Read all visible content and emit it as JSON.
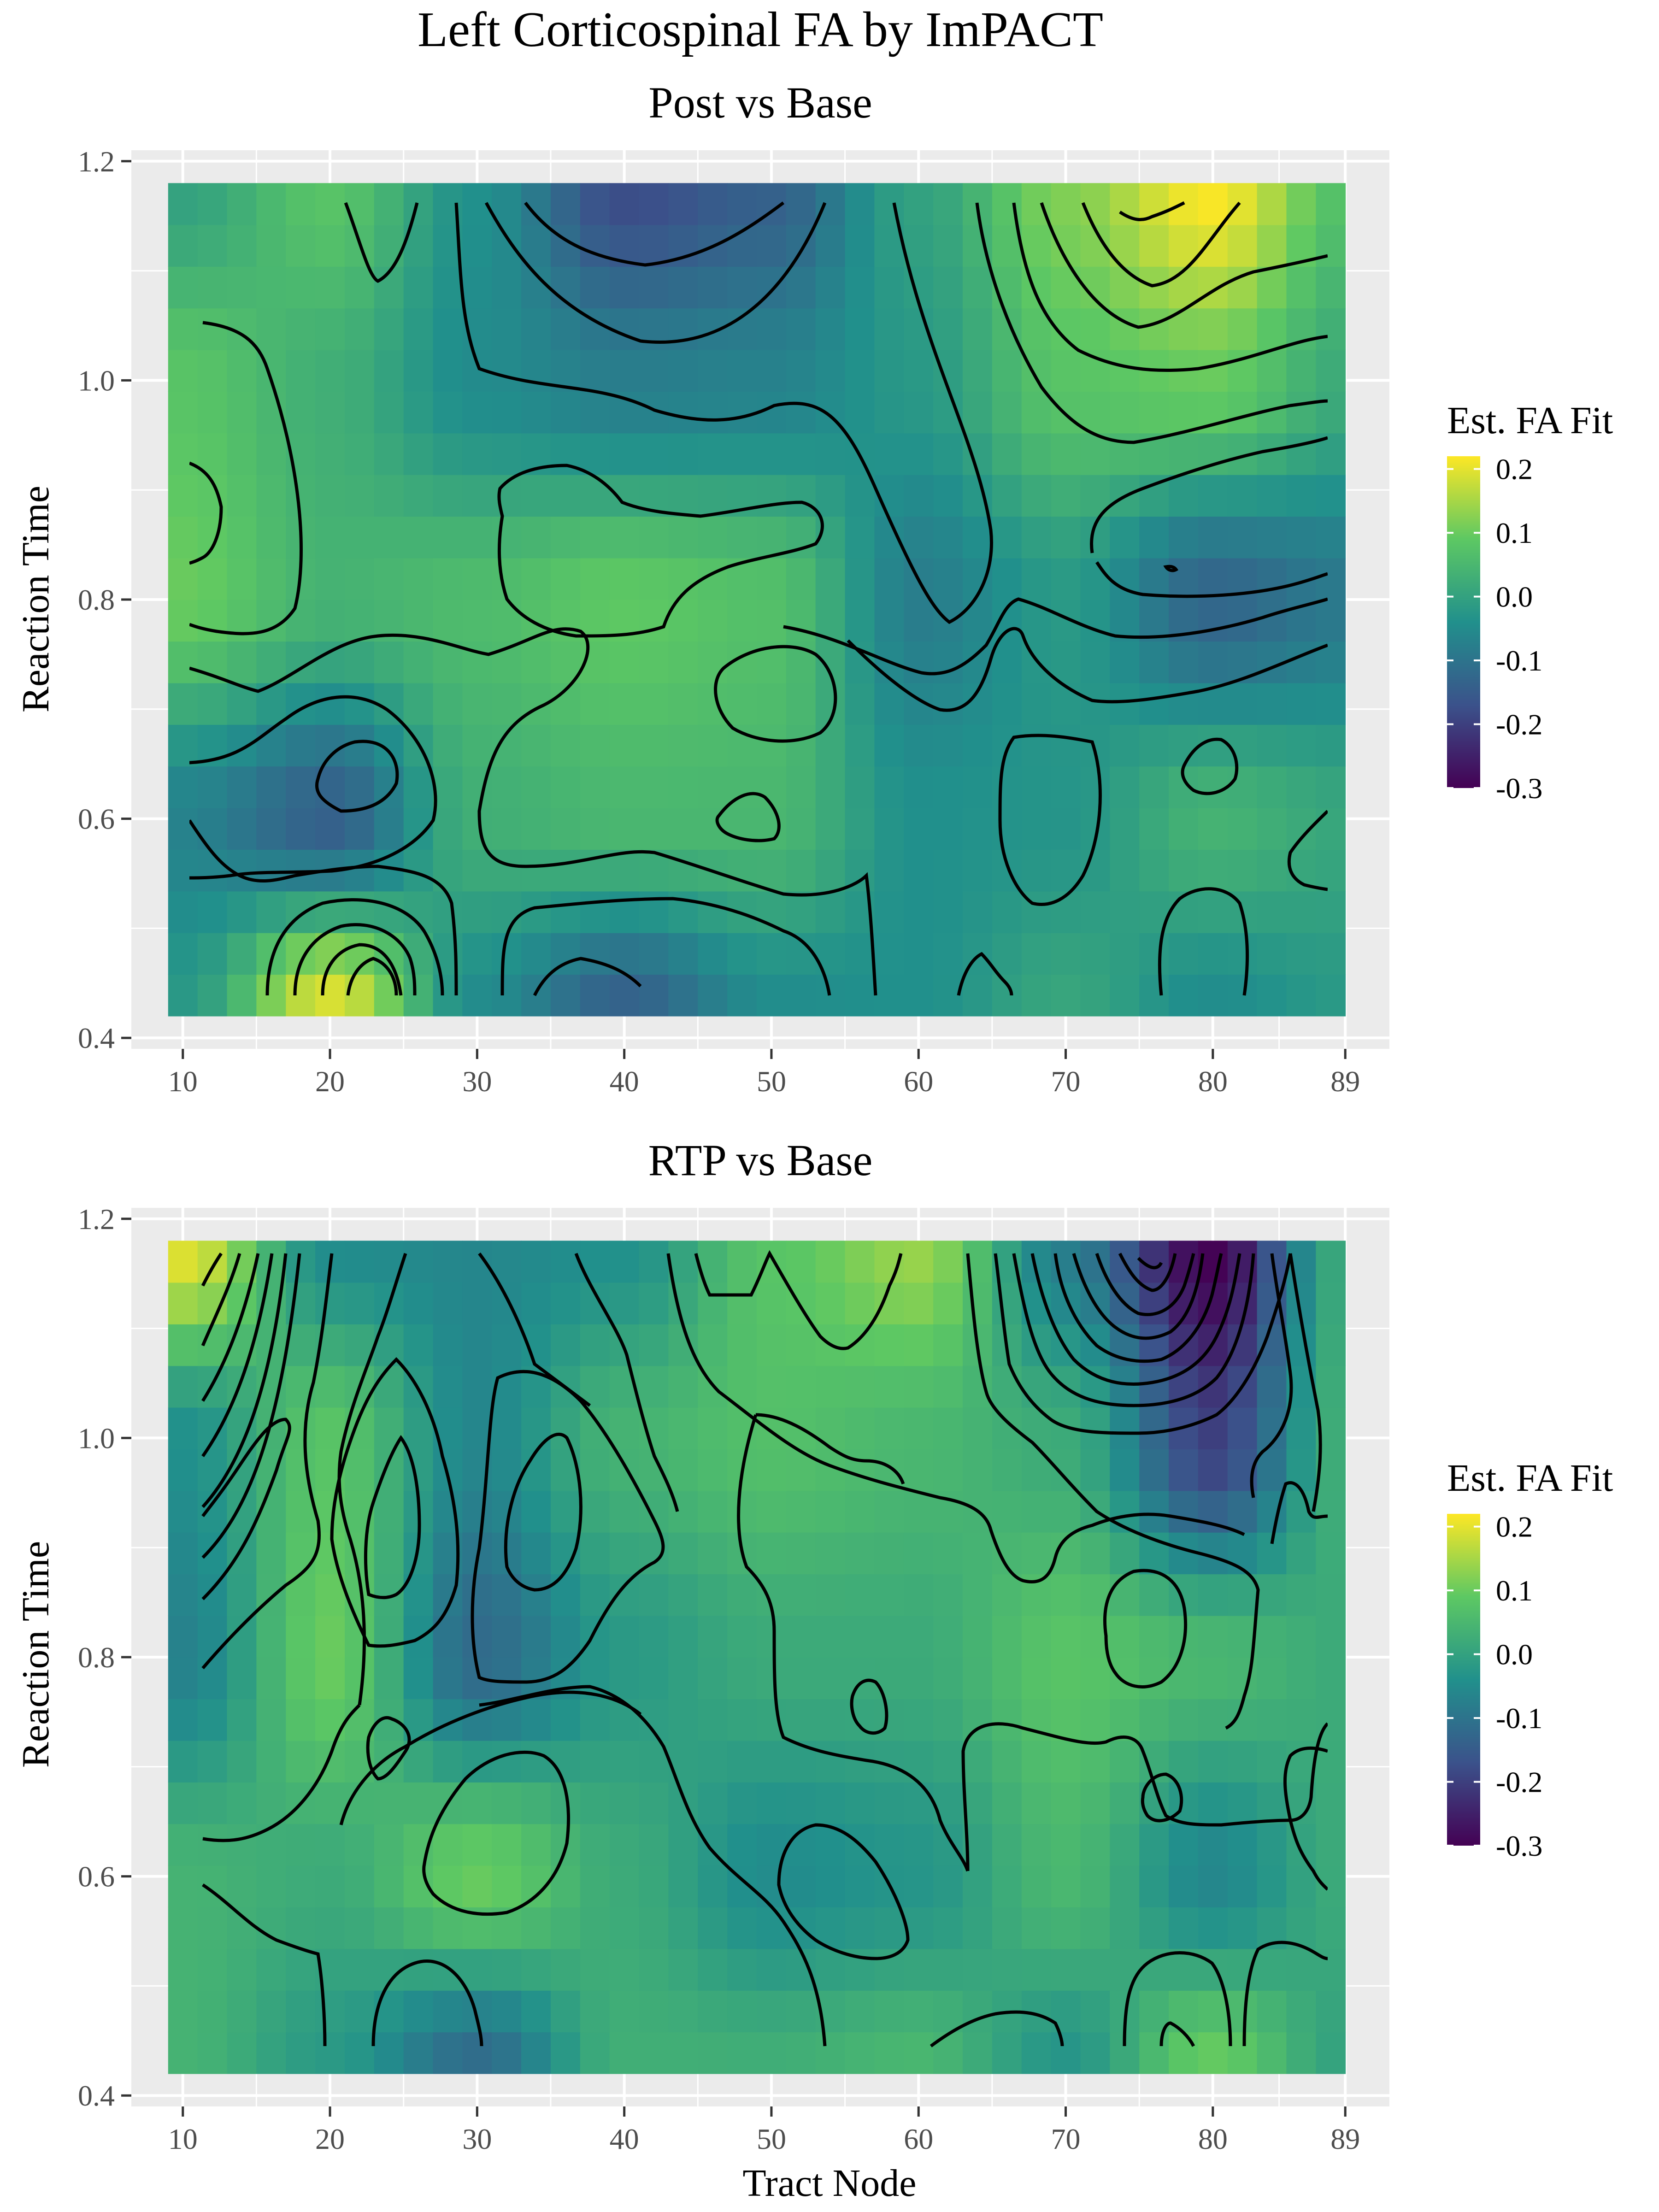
{
  "figure": {
    "title": "Left Corticospinal FA by ImPACT",
    "xlabel": "Tract Node"
  },
  "chart_data": [
    {
      "type": "heatmap",
      "title": "Post vs Base",
      "xlabel": "",
      "ylabel": "Reaction Time",
      "x_ticks": [
        10,
        20,
        30,
        40,
        50,
        60,
        70,
        80,
        89
      ],
      "y_ticks": [
        "0.4",
        "0.6",
        "0.8",
        "1.0",
        "1.2"
      ],
      "xlim": [
        9,
        89
      ],
      "ylim": [
        0.42,
        1.18
      ],
      "legend": {
        "title": "Est. FA Fit",
        "ticks": [
          "0.2",
          "0.1",
          "0.0",
          "-0.1",
          "-0.2",
          "-0.3"
        ],
        "range": [
          -0.3,
          0.22
        ],
        "colors": [
          "#440154",
          "#3b528b",
          "#21908c",
          "#5dc863",
          "#fde725"
        ],
        "placement": "right"
      },
      "value_grid_note": "z sampled on x nodes and y rows",
      "x": [
        10,
        20,
        30,
        40,
        50,
        60,
        70,
        80,
        89
      ],
      "y": [
        0.42,
        0.6,
        0.8,
        1.0,
        1.18
      ],
      "z": [
        [
          -0.02,
          0.2,
          -0.05,
          -0.14,
          -0.05,
          -0.04,
          0.01,
          -0.05,
          -0.02
        ],
        [
          -0.07,
          -0.14,
          0.03,
          0.05,
          0.05,
          -0.04,
          -0.03,
          0.04,
          0.01
        ],
        [
          0.1,
          0.04,
          0.06,
          0.09,
          0.07,
          -0.08,
          -0.02,
          -0.13,
          -0.09
        ],
        [
          0.08,
          0.03,
          -0.05,
          -0.08,
          -0.07,
          -0.02,
          0.08,
          0.1,
          0.02
        ],
        [
          0.0,
          0.08,
          -0.04,
          -0.18,
          -0.14,
          0.0,
          0.12,
          0.22,
          0.07
        ]
      ]
    },
    {
      "type": "heatmap",
      "title": "RTP vs Base",
      "xlabel": "Tract Node",
      "ylabel": "Reaction Time",
      "x_ticks": [
        10,
        20,
        30,
        40,
        50,
        60,
        70,
        80,
        89
      ],
      "y_ticks": [
        "0.4",
        "0.6",
        "0.8",
        "1.0",
        "1.2"
      ],
      "xlim": [
        9,
        89
      ],
      "ylim": [
        0.42,
        1.18
      ],
      "legend": {
        "title": "Est. FA Fit",
        "ticks": [
          "0.2",
          "0.1",
          "0.0",
          "-0.1",
          "-0.2",
          "-0.3"
        ],
        "range": [
          -0.3,
          0.22
        ],
        "colors": [
          "#440154",
          "#3b528b",
          "#21908c",
          "#5dc863",
          "#fde725"
        ],
        "placement": "right"
      },
      "x": [
        10,
        20,
        30,
        40,
        50,
        60,
        70,
        80,
        89
      ],
      "y": [
        0.42,
        0.6,
        0.8,
        1.0,
        1.18
      ],
      "z": [
        [
          0.04,
          -0.02,
          -0.12,
          0.03,
          0.03,
          0.05,
          -0.03,
          0.1,
          0.0
        ],
        [
          0.04,
          0.02,
          0.1,
          0.02,
          -0.05,
          -0.03,
          0.05,
          -0.06,
          0.02
        ],
        [
          -0.07,
          0.1,
          -0.12,
          -0.02,
          0.02,
          0.02,
          0.08,
          0.05,
          0.02
        ],
        [
          -0.04,
          0.08,
          -0.06,
          0.04,
          0.07,
          0.05,
          0.02,
          -0.2,
          0.03
        ],
        [
          0.2,
          -0.05,
          -0.06,
          -0.04,
          0.08,
          0.14,
          -0.08,
          -0.3,
          0.02
        ]
      ]
    }
  ]
}
